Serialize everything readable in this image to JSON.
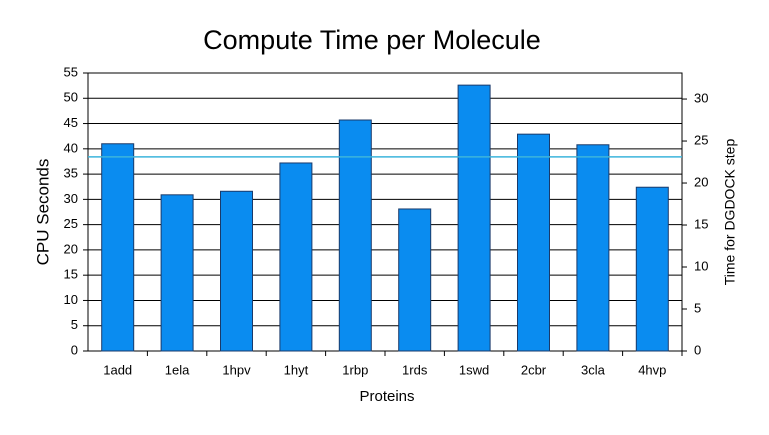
{
  "chart_data": {
    "type": "bar",
    "title": "Compute Time per Molecule",
    "x_label": "Proteins",
    "y_label": "CPU Seconds",
    "y2_label": "Time for DGDOCK step",
    "categories": [
      "1add",
      "1ela",
      "1hpv",
      "1hyt",
      "1rbp",
      "1rds",
      "1swd",
      "2cbr",
      "3cla",
      "4hvp"
    ],
    "values": [
      41.0,
      30.9,
      31.6,
      37.2,
      45.7,
      28.1,
      52.6,
      42.9,
      40.8,
      32.4
    ],
    "color": "#0a8cf0",
    "ylim": [
      0,
      55
    ],
    "yticks": [
      0,
      5,
      10,
      15,
      20,
      25,
      30,
      35,
      40,
      45,
      50,
      55
    ],
    "y2lim": [
      0,
      33.1
    ],
    "y2ticks": [
      0,
      5,
      10,
      15,
      20,
      25,
      30
    ],
    "reference_line": {
      "value": 38.4,
      "color": "#3cb4dc"
    },
    "grid": true
  }
}
